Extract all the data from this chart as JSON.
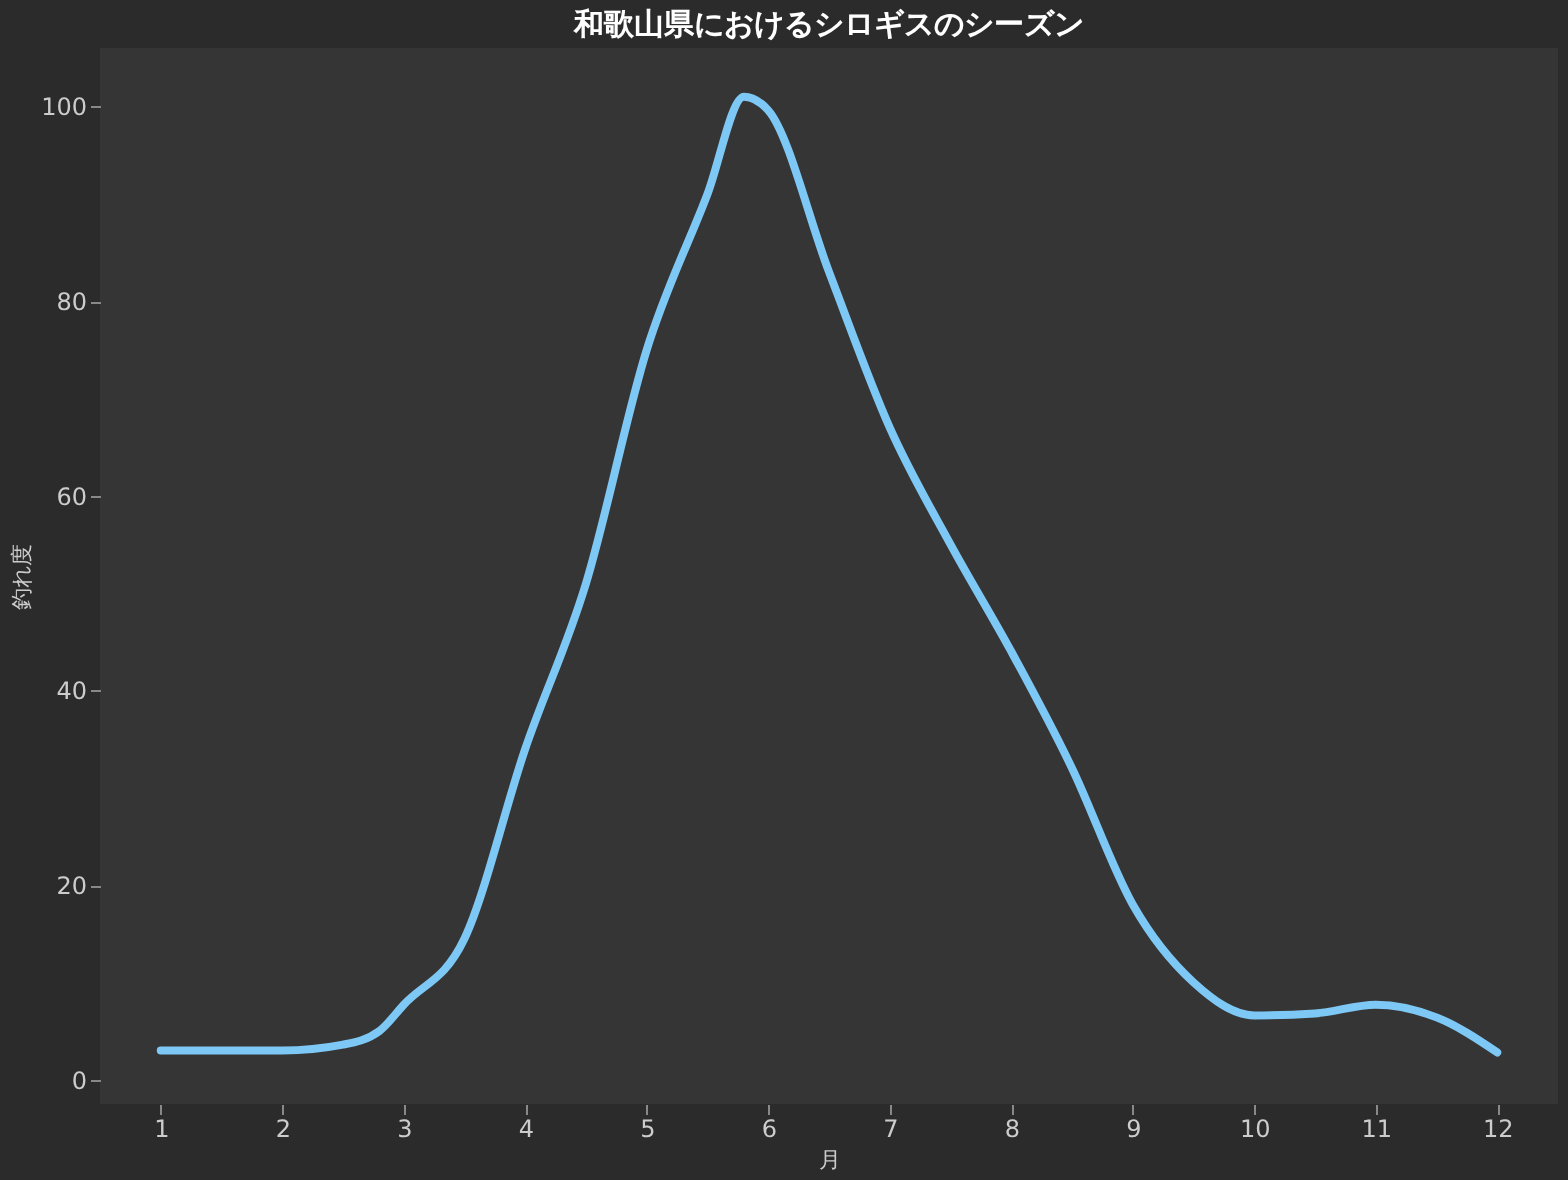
{
  "chart_data": {
    "type": "line",
    "title": "和歌山県におけるシロギスのシーズン",
    "xlabel": "月",
    "ylabel": "釣れ度",
    "x": [
      1,
      1.5,
      2,
      2.5,
      2.8,
      3,
      3.5,
      4,
      4.5,
      5,
      5.5,
      5.8,
      6,
      6.5,
      7,
      7.5,
      8,
      8.5,
      9,
      9.5,
      10,
      10.5,
      11,
      11.5,
      12
    ],
    "series": [
      {
        "color": "#7ec8f5",
        "values": [
          3,
          3,
          3,
          3.6,
          5,
          7.7,
          14.5,
          34,
          51,
          75,
          91,
          101,
          99.6,
          83,
          67,
          55,
          44,
          32,
          18,
          10,
          6.6,
          6.8,
          7.7,
          6.4,
          2.8
        ]
      }
    ],
    "xlim": [
      0.5,
      12.5
    ],
    "ylim": [
      -2.5,
      106
    ],
    "xticks": [
      1,
      2,
      3,
      4,
      5,
      6,
      7,
      8,
      9,
      10,
      11,
      12
    ],
    "yticks": [
      0,
      20,
      40,
      60,
      80,
      100
    ],
    "grid": false,
    "marker": "none",
    "line_style": "solid"
  }
}
